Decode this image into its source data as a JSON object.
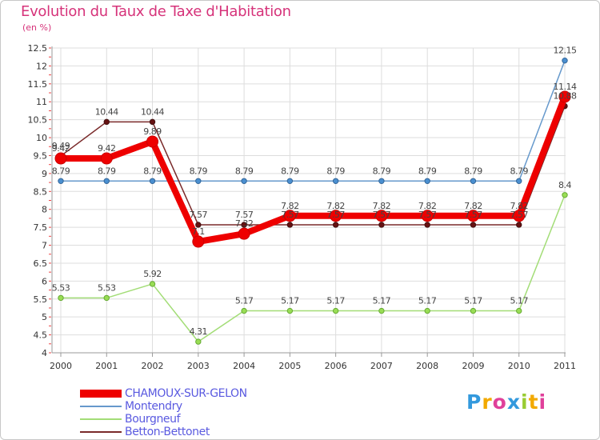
{
  "colors": {
    "title": "#d6337a",
    "legend_text": "#5a5ae0",
    "axis_text": "#333333",
    "grid": "#dddddd",
    "CHAMOUX-SUR-GELON": "#ee0000",
    "Montendry": "#6699cc",
    "Bourgneuf": "#a3dd77",
    "Betton-Bettonet": "#7a2a2a"
  },
  "chart_data": {
    "type": "line",
    "title": "Evolution du Taux de Taxe d'Habitation",
    "subtitle": "(en %)",
    "xlabel": "",
    "ylabel": "",
    "x": [
      "2000",
      "2001",
      "2002",
      "2003",
      "2004",
      "2005",
      "2006",
      "2007",
      "2008",
      "2009",
      "2010",
      "2011"
    ],
    "ylim": [
      4,
      12.5
    ],
    "yticks": [
      "4",
      "4.5",
      "5",
      "5.5",
      "6",
      "6.5",
      "7",
      "7.5",
      "8",
      "8.5",
      "9",
      "9.5",
      "10",
      "10.5",
      "11",
      "11.5",
      "12",
      "12.5"
    ],
    "grid": true,
    "legend_position": "bottom-left",
    "series": [
      {
        "name": "CHAMOUX-SUR-GELON",
        "values": [
          9.42,
          9.42,
          9.89,
          7.1,
          7.32,
          7.82,
          7.82,
          7.82,
          7.82,
          7.82,
          7.82,
          11.14
        ],
        "labels": [
          "9.42",
          "9.42",
          "9.89",
          "7.1",
          "7.32",
          "7.82",
          "7.82",
          "7.82",
          "7.82",
          "7.82",
          "7.82",
          "11.14"
        ]
      },
      {
        "name": "Montendry",
        "values": [
          8.79,
          8.79,
          8.79,
          8.79,
          8.79,
          8.79,
          8.79,
          8.79,
          8.79,
          8.79,
          8.79,
          12.15
        ],
        "labels": [
          "8.79",
          "8.79",
          "8.79",
          "8.79",
          "8.79",
          "8.79",
          "8.79",
          "8.79",
          "8.79",
          "8.79",
          "8.79",
          "12.15"
        ]
      },
      {
        "name": "Bourgneuf",
        "values": [
          5.53,
          5.53,
          5.92,
          4.31,
          5.17,
          5.17,
          5.17,
          5.17,
          5.17,
          5.17,
          5.17,
          8.4
        ],
        "labels": [
          "5.53",
          "5.53",
          "5.92",
          "4.31",
          "5.17",
          "5.17",
          "5.17",
          "5.17",
          "5.17",
          "5.17",
          "5.17",
          "8.4"
        ]
      },
      {
        "name": "Betton-Bettonet",
        "values": [
          9.49,
          10.44,
          10.44,
          7.57,
          7.57,
          7.57,
          7.57,
          7.57,
          7.57,
          7.57,
          7.57,
          10.88
        ],
        "labels": [
          "9.49",
          "10.44",
          "10.44",
          "7.57",
          "7.57",
          "7.57",
          "7.57",
          "7.57",
          "7.57",
          "7.57",
          "7.57",
          "10.88"
        ]
      }
    ]
  },
  "legend": [
    {
      "label": "CHAMOUX-SUR-GELON",
      "color": "#ee0000"
    },
    {
      "label": "Montendry",
      "color": "#6699cc"
    },
    {
      "label": "Bourgneuf",
      "color": "#a3dd77"
    },
    {
      "label": "Betton-Bettonet",
      "color": "#7a2a2a"
    }
  ],
  "logo": {
    "letters": [
      "P",
      "r",
      "o",
      "x",
      "i",
      "t",
      "i"
    ],
    "colors": [
      "#3399dd",
      "#f2a900",
      "#e0409a",
      "#3399dd",
      "#99cc33",
      "#f2a900",
      "#e0409a"
    ]
  }
}
